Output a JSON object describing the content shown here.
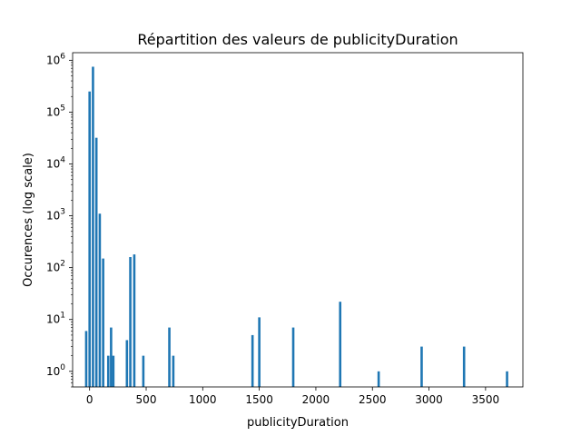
{
  "chart_data": {
    "type": "bar",
    "title": "Répartition des valeurs de publicityDuration",
    "xlabel": "publicityDuration",
    "ylabel": "Occurences (log scale)",
    "yscale": "log",
    "xlim": [
      -150,
      3830
    ],
    "ylim": [
      0.5,
      1400000
    ],
    "grid": false,
    "color": "#1f77b4",
    "xticks": [
      0,
      500,
      1000,
      1500,
      2000,
      2500,
      3000,
      3500
    ],
    "xtick_labels": [
      "0",
      "500",
      "1000",
      "1500",
      "2000",
      "2500",
      "3000",
      "3500"
    ],
    "yticks": [
      1,
      10,
      100,
      1000,
      10000,
      100000,
      1000000
    ],
    "ytick_labels": [
      {
        "base": "10",
        "exp": "0"
      },
      {
        "base": "10",
        "exp": "1"
      },
      {
        "base": "10",
        "exp": "2"
      },
      {
        "base": "10",
        "exp": "3"
      },
      {
        "base": "10",
        "exp": "4"
      },
      {
        "base": "10",
        "exp": "5"
      },
      {
        "base": "10",
        "exp": "6"
      }
    ],
    "points": [
      {
        "x": -30,
        "y": 6
      },
      {
        "x": 0,
        "y": 250000
      },
      {
        "x": 30,
        "y": 750000
      },
      {
        "x": 60,
        "y": 32000
      },
      {
        "x": 90,
        "y": 1100
      },
      {
        "x": 120,
        "y": 150
      },
      {
        "x": 165,
        "y": 2
      },
      {
        "x": 190,
        "y": 7
      },
      {
        "x": 210,
        "y": 2
      },
      {
        "x": 330,
        "y": 4
      },
      {
        "x": 360,
        "y": 160
      },
      {
        "x": 395,
        "y": 180
      },
      {
        "x": 475,
        "y": 2
      },
      {
        "x": 705,
        "y": 7
      },
      {
        "x": 740,
        "y": 2
      },
      {
        "x": 1440,
        "y": 5
      },
      {
        "x": 1500,
        "y": 11
      },
      {
        "x": 1800,
        "y": 7
      },
      {
        "x": 2215,
        "y": 22
      },
      {
        "x": 2555,
        "y": 1
      },
      {
        "x": 2935,
        "y": 3
      },
      {
        "x": 3310,
        "y": 3
      },
      {
        "x": 3690,
        "y": 1
      }
    ]
  }
}
